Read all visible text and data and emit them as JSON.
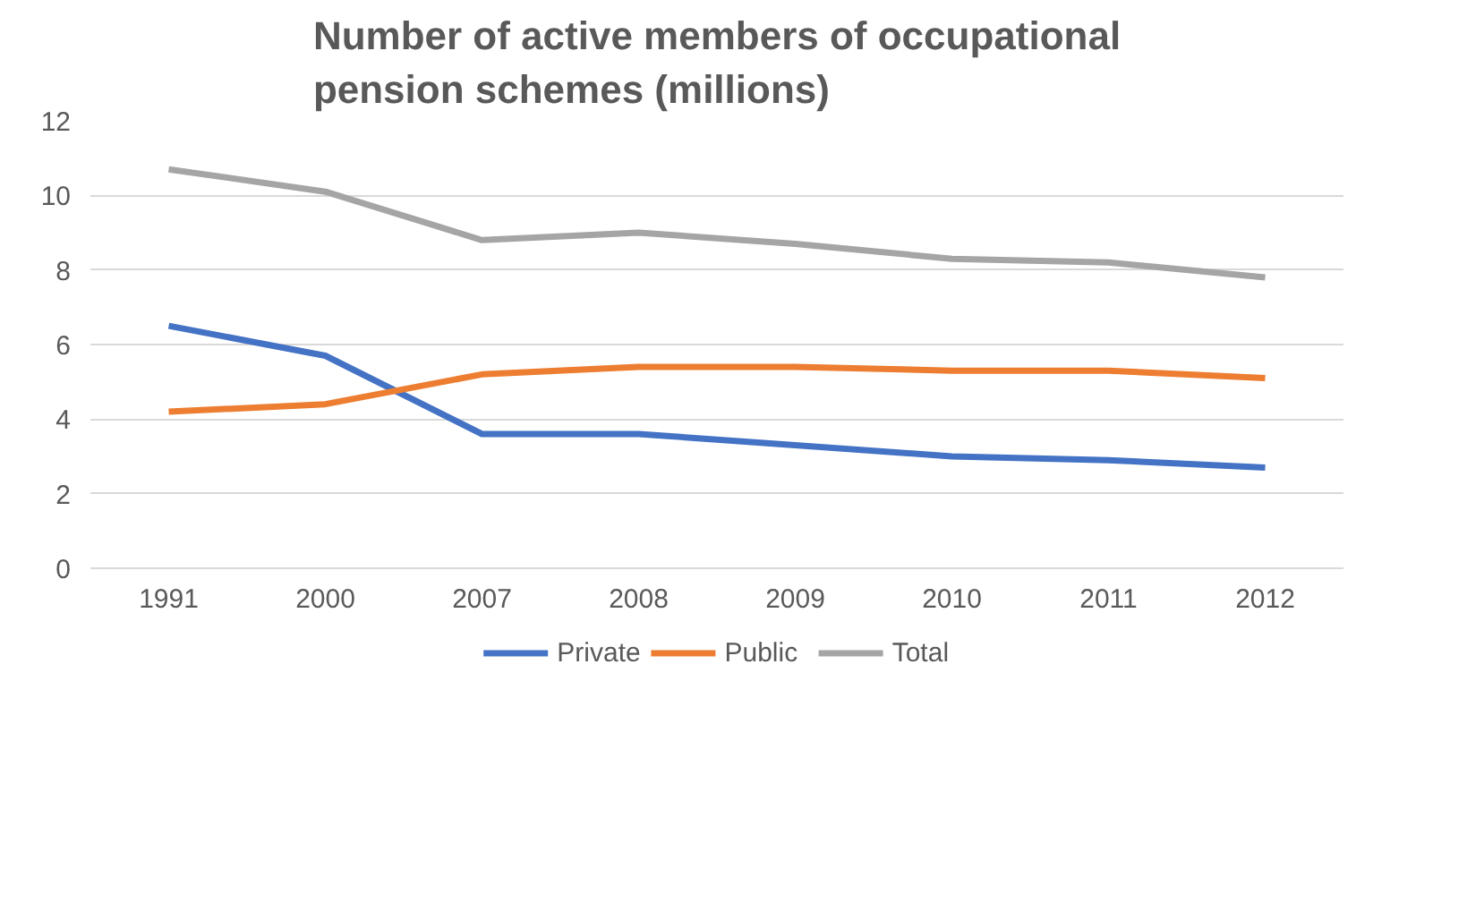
{
  "chart_data": {
    "type": "line",
    "title": "Number of active members of occupational pension schemes (millions)",
    "categories": [
      "1991",
      "2000",
      "2007",
      "2008",
      "2009",
      "2010",
      "2011",
      "2012"
    ],
    "series": [
      {
        "name": "Private",
        "color": "#4472c4",
        "values": [
          6.5,
          5.7,
          3.6,
          3.6,
          3.3,
          3.0,
          2.9,
          2.7
        ]
      },
      {
        "name": "Public",
        "color": "#ed7d31",
        "values": [
          4.2,
          4.4,
          5.2,
          5.4,
          5.4,
          5.3,
          5.3,
          5.1
        ]
      },
      {
        "name": "Total",
        "color": "#a5a5a5",
        "values": [
          10.7,
          10.1,
          8.8,
          9.0,
          8.7,
          8.3,
          8.2,
          7.8
        ]
      }
    ],
    "ylim": [
      0,
      12
    ],
    "yticks": [
      0,
      2,
      4,
      6,
      8,
      10,
      12
    ],
    "grid": "y",
    "legend": "bottom",
    "marker": "none",
    "line_style": "solid"
  }
}
